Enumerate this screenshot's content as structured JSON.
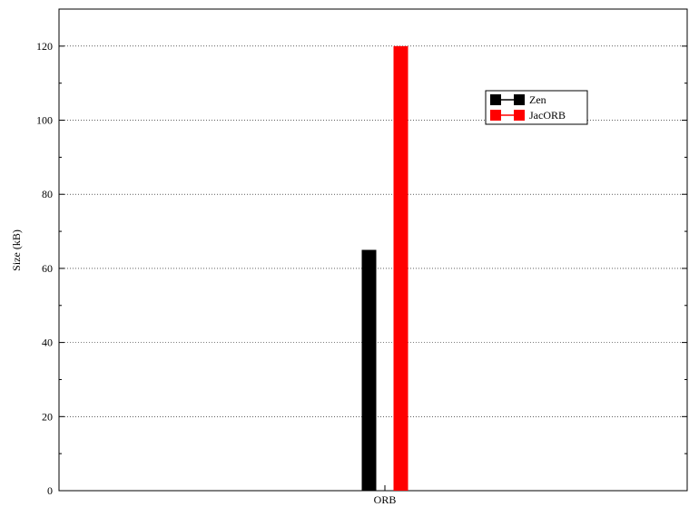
{
  "chart_data": {
    "type": "bar",
    "categories": [
      "ORB"
    ],
    "series": [
      {
        "name": "Zen",
        "values": [
          65
        ],
        "color": "#000000"
      },
      {
        "name": "JacORB",
        "values": [
          120
        ],
        "color": "#ff0000"
      }
    ],
    "ylabel": "Size (kB)",
    "xlabel": "",
    "ylim": [
      0,
      130
    ],
    "yticks": [
      0,
      20,
      40,
      60,
      80,
      100,
      120
    ],
    "grid": true,
    "legend_placement": "top-right"
  }
}
